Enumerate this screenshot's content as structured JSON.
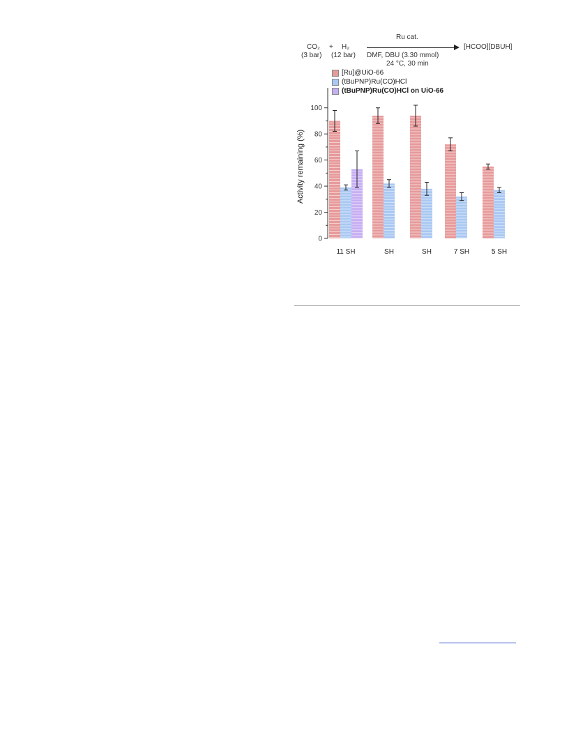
{
  "reaction": {
    "reactant1": "CO₂",
    "reactant1_cond": "(3 bar)",
    "plus": "+",
    "reactant2": "H₂",
    "reactant2_cond": "(12 bar)",
    "catalyst": "Ru cat.",
    "conditions1": "DMF, DBU (3.30 mmol)",
    "conditions2": "24 °C, 30 min",
    "product": "[HCOO][DBUH]"
  },
  "chart_data": {
    "type": "bar",
    "ylabel": "Activity remaining (%)",
    "ylim": [
      0,
      110
    ],
    "yticks": [
      "0",
      "20",
      "40",
      "60",
      "80",
      "100"
    ],
    "categories": [
      "11 SH",
      "SH",
      "SH",
      "7 SH",
      "5 SH"
    ],
    "series": [
      {
        "name": "[Ru]@UiO-66",
        "color": "#e79a9a",
        "values": [
          90,
          94,
          94,
          72,
          55
        ],
        "errors": [
          8,
          6,
          8,
          5,
          2
        ]
      },
      {
        "name": "(tBuPNP)Ru(CO)HCl",
        "color": "#a9c8f2",
        "values": [
          39,
          42,
          38,
          32,
          37
        ],
        "errors": [
          2,
          3,
          5,
          3,
          2
        ]
      },
      {
        "name": "(tBuPNP)Ru(CO)HCl on UiO-66",
        "color": "#c6aef2",
        "values": [
          53,
          null,
          null,
          null,
          null
        ],
        "errors": [
          14,
          null,
          null,
          null,
          null
        ]
      }
    ],
    "grid": false,
    "legend_position": "top-left"
  }
}
